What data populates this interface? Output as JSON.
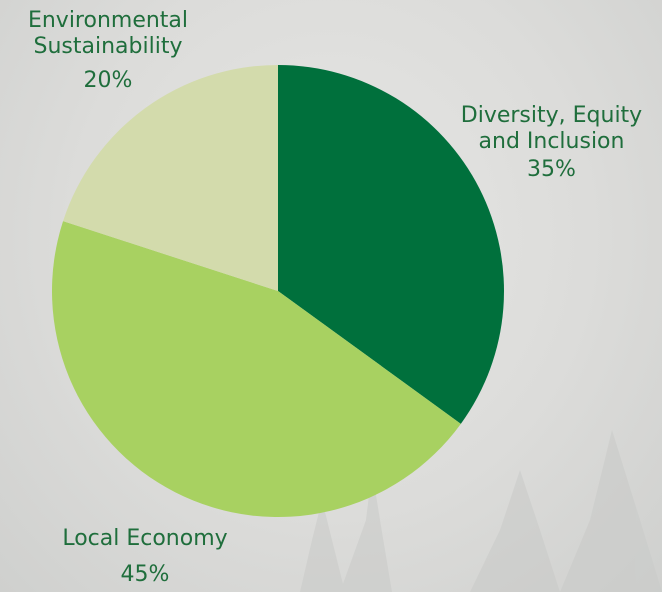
{
  "chart_data": {
    "type": "pie",
    "title": "",
    "slices": [
      {
        "label_lines": [
          "Diversity, Equity",
          "and Inclusion"
        ],
        "value": 35,
        "pct_label": "35%",
        "color": "#00703c"
      },
      {
        "label_lines": [
          "Local Economy"
        ],
        "value": 45,
        "pct_label": "45%",
        "color": "#a8d161"
      },
      {
        "label_lines": [
          "Environmental",
          "Sustainability"
        ],
        "value": 20,
        "pct_label": "20%",
        "color": "#d3dbac"
      }
    ]
  },
  "colors": {
    "label_text": "#1f6e3c",
    "background": "#dcdcda"
  }
}
